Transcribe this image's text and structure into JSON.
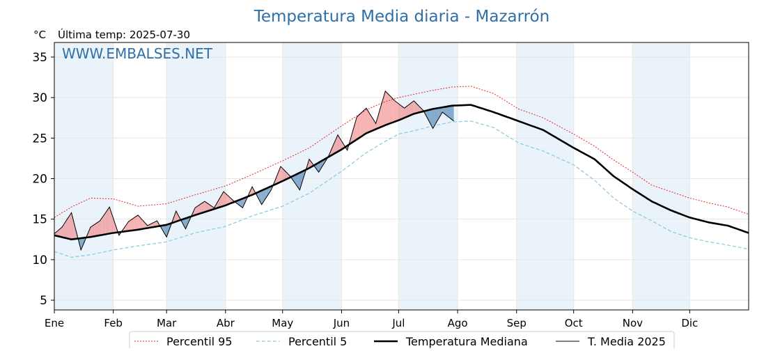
{
  "chart_data": {
    "type": "line",
    "title": "Temperatura Media diaria - Mazarrón",
    "subtitle": "Última temp: 2025-07-30",
    "unit_label": "°C",
    "watermark": "WWW.EMBALSES.NET",
    "xlabel": "",
    "ylabel": "",
    "ylim": [
      3.8,
      36.8
    ],
    "y_ticks": [
      5,
      10,
      15,
      20,
      25,
      30,
      35
    ],
    "x_range_days": [
      1,
      366
    ],
    "month_labels": [
      "Ene",
      "Feb",
      "Mar",
      "Abr",
      "May",
      "Jun",
      "Jul",
      "Ago",
      "Sep",
      "Oct",
      "Nov",
      "Dic"
    ],
    "grid": true,
    "legend_position": "bottom-center",
    "colors": {
      "p95": "#e8231e",
      "p5": "#8fcbe0",
      "median": "#000000",
      "year": "#000000",
      "above_fill": "#f08080",
      "below_fill": "#3d78ad",
      "shade": "#eaf3fa",
      "title": "#2f6fa8",
      "watermark": "#2f6fa8"
    },
    "series": [
      {
        "name": "Percentil 95",
        "style": "dotted",
        "x": [
          1,
          10,
          20,
          32,
          45,
          60,
          75,
          91,
          105,
          121,
          135,
          152,
          165,
          175,
          182,
          190,
          200,
          210,
          220,
          232,
          245,
          258,
          274,
          285,
          295,
          305,
          315,
          325,
          335,
          345,
          355,
          366
        ],
        "values": [
          15.2,
          16.5,
          17.6,
          17.5,
          16.6,
          16.9,
          18.0,
          19.1,
          20.5,
          22.2,
          23.8,
          26.5,
          28.5,
          29.5,
          30.0,
          30.4,
          30.9,
          31.3,
          31.4,
          30.5,
          28.6,
          27.5,
          25.5,
          24.0,
          22.3,
          20.8,
          19.2,
          18.4,
          17.6,
          17.0,
          16.5,
          15.6
        ]
      },
      {
        "name": "Percentil 5",
        "style": "dashed",
        "x": [
          1,
          10,
          20,
          32,
          45,
          60,
          75,
          91,
          105,
          121,
          135,
          152,
          165,
          175,
          182,
          190,
          200,
          210,
          220,
          232,
          245,
          258,
          274,
          285,
          295,
          305,
          315,
          325,
          335,
          345,
          355,
          366
        ],
        "values": [
          11.0,
          10.3,
          10.6,
          11.2,
          11.7,
          12.2,
          13.3,
          14.1,
          15.4,
          16.6,
          18.2,
          20.9,
          23.2,
          24.6,
          25.5,
          25.9,
          26.5,
          27.0,
          27.1,
          26.3,
          24.4,
          23.4,
          21.7,
          19.8,
          17.6,
          16.0,
          14.8,
          13.5,
          12.7,
          12.2,
          11.8,
          11.3
        ]
      },
      {
        "name": "Temperatura Mediana",
        "style": "solid-thick",
        "x": [
          1,
          10,
          20,
          32,
          45,
          60,
          75,
          91,
          105,
          121,
          135,
          152,
          165,
          175,
          182,
          190,
          200,
          210,
          220,
          232,
          245,
          258,
          274,
          285,
          295,
          305,
          315,
          325,
          335,
          345,
          355,
          366
        ],
        "values": [
          13.0,
          12.5,
          12.8,
          13.3,
          13.7,
          14.3,
          15.5,
          16.7,
          18.0,
          19.7,
          21.3,
          23.6,
          25.6,
          26.6,
          27.2,
          28.0,
          28.6,
          29.0,
          29.1,
          28.2,
          27.1,
          26.0,
          23.8,
          22.4,
          20.3,
          18.7,
          17.2,
          16.1,
          15.2,
          14.6,
          14.2,
          13.3
        ]
      },
      {
        "name": "T. Media 2025",
        "style": "solid-thin",
        "x": [
          1,
          5,
          10,
          15,
          20,
          25,
          30,
          35,
          40,
          45,
          50,
          55,
          60,
          65,
          70,
          75,
          80,
          85,
          90,
          95,
          100,
          105,
          110,
          115,
          120,
          125,
          130,
          135,
          140,
          145,
          150,
          155,
          160,
          165,
          170,
          175,
          180,
          185,
          190,
          195,
          200,
          205,
          211
        ],
        "values": [
          13.2,
          14.0,
          15.8,
          11.2,
          14.0,
          14.8,
          16.5,
          13.0,
          14.7,
          15.5,
          14.2,
          14.8,
          12.8,
          16.0,
          13.8,
          16.4,
          17.2,
          16.4,
          18.4,
          17.3,
          16.4,
          19.0,
          16.8,
          18.6,
          21.5,
          20.3,
          18.6,
          22.4,
          20.8,
          22.7,
          25.4,
          23.5,
          27.6,
          28.7,
          26.8,
          30.8,
          29.6,
          28.7,
          29.6,
          28.4,
          26.2,
          28.2,
          27.1
        ]
      }
    ]
  },
  "legend": {
    "items": [
      {
        "label": "Percentil 95"
      },
      {
        "label": "Percentil 5"
      },
      {
        "label": "Temperatura Mediana"
      },
      {
        "label": "T. Media 2025"
      }
    ]
  }
}
